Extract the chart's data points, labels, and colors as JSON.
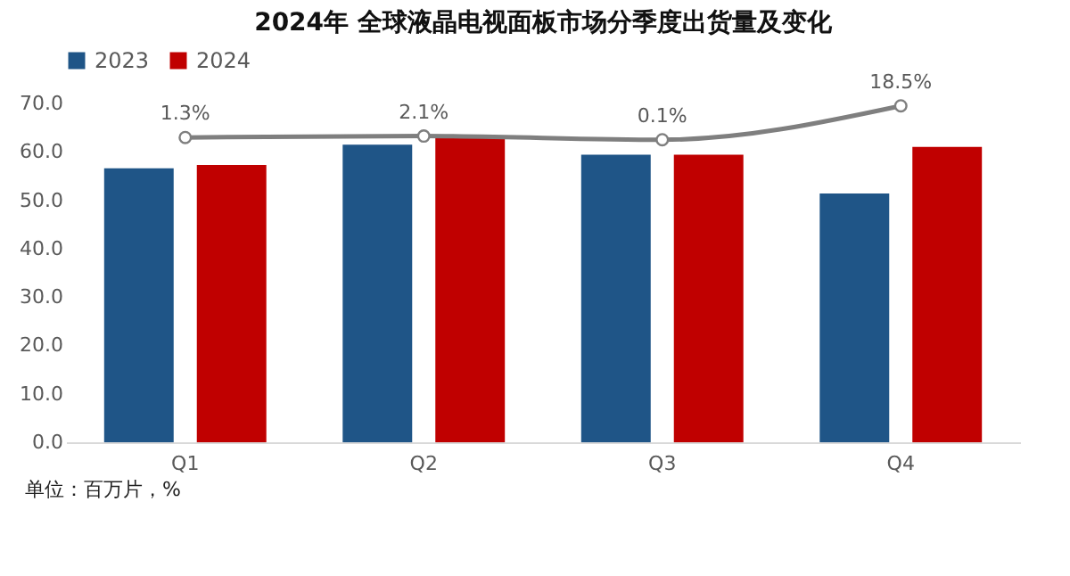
{
  "chart_data": {
    "type": "bar",
    "title": "2024年 全球液晶电视面板市场分季度出货量及变化",
    "categories": [
      "Q1",
      "Q2",
      "Q3",
      "Q4"
    ],
    "series": [
      {
        "name": "2023",
        "color": "#1f5587",
        "values": [
          56.6,
          61.5,
          59.4,
          51.4
        ]
      },
      {
        "name": "2024",
        "color": "#c00000",
        "values": [
          57.3,
          62.8,
          59.4,
          61.0
        ]
      },
      {
        "type": "line",
        "axis": "y2",
        "color": "#7f7f7f",
        "values": [
          1.3,
          2.1,
          0.1,
          18.5
        ],
        "value_labels": [
          "1.3%",
          "2.1%",
          "0.1%",
          "18.5%"
        ]
      }
    ],
    "ylim": [
      0,
      70
    ],
    "yticks": [
      {
        "value": 0,
        "label": "0.0"
      },
      {
        "value": 10,
        "label": "10.0"
      },
      {
        "value": 20,
        "label": "20.0"
      },
      {
        "value": 30,
        "label": "30.0"
      },
      {
        "value": 40,
        "label": "40.0"
      },
      {
        "value": 50,
        "label": "50.0"
      },
      {
        "value": 60,
        "label": "60.0"
      },
      {
        "value": 70,
        "label": "70.0"
      }
    ],
    "legend": "top",
    "marker": "circle",
    "annotations": [
      "单位：百万片，%"
    ]
  }
}
